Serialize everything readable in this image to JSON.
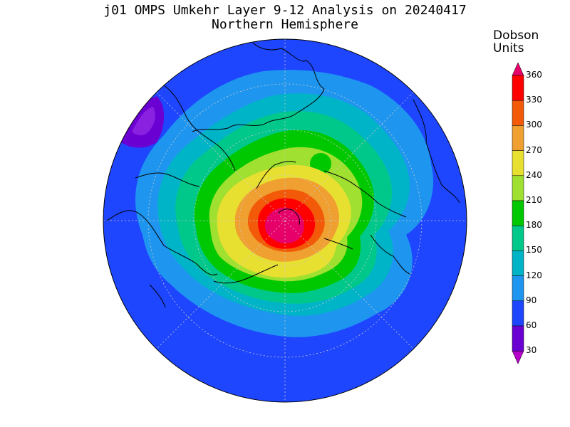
{
  "title": {
    "line1": "j01 OMPS Umkehr Layer 9-12 Analysis on 20240417",
    "line2": "Northern Hemisphere"
  },
  "colorbar": {
    "title_line1": "Dobson",
    "title_line2": "Units",
    "levels": [
      "360",
      "330",
      "300",
      "270",
      "240",
      "210",
      "180",
      "150",
      "120",
      "90",
      "60",
      "30"
    ],
    "colors": [
      "#e8006a",
      "#ff0000",
      "#f25a0a",
      "#f0a030",
      "#e8e030",
      "#a0e030",
      "#00c800",
      "#00c88a",
      "#00b4c8",
      "#1e96f0",
      "#1e46ff",
      "#6a00d2",
      "#b400c8"
    ]
  },
  "map": {
    "hemisphere": "Northern Hemisphere",
    "projection": "polar stereographic",
    "coastlines": true,
    "graticule": true
  }
}
